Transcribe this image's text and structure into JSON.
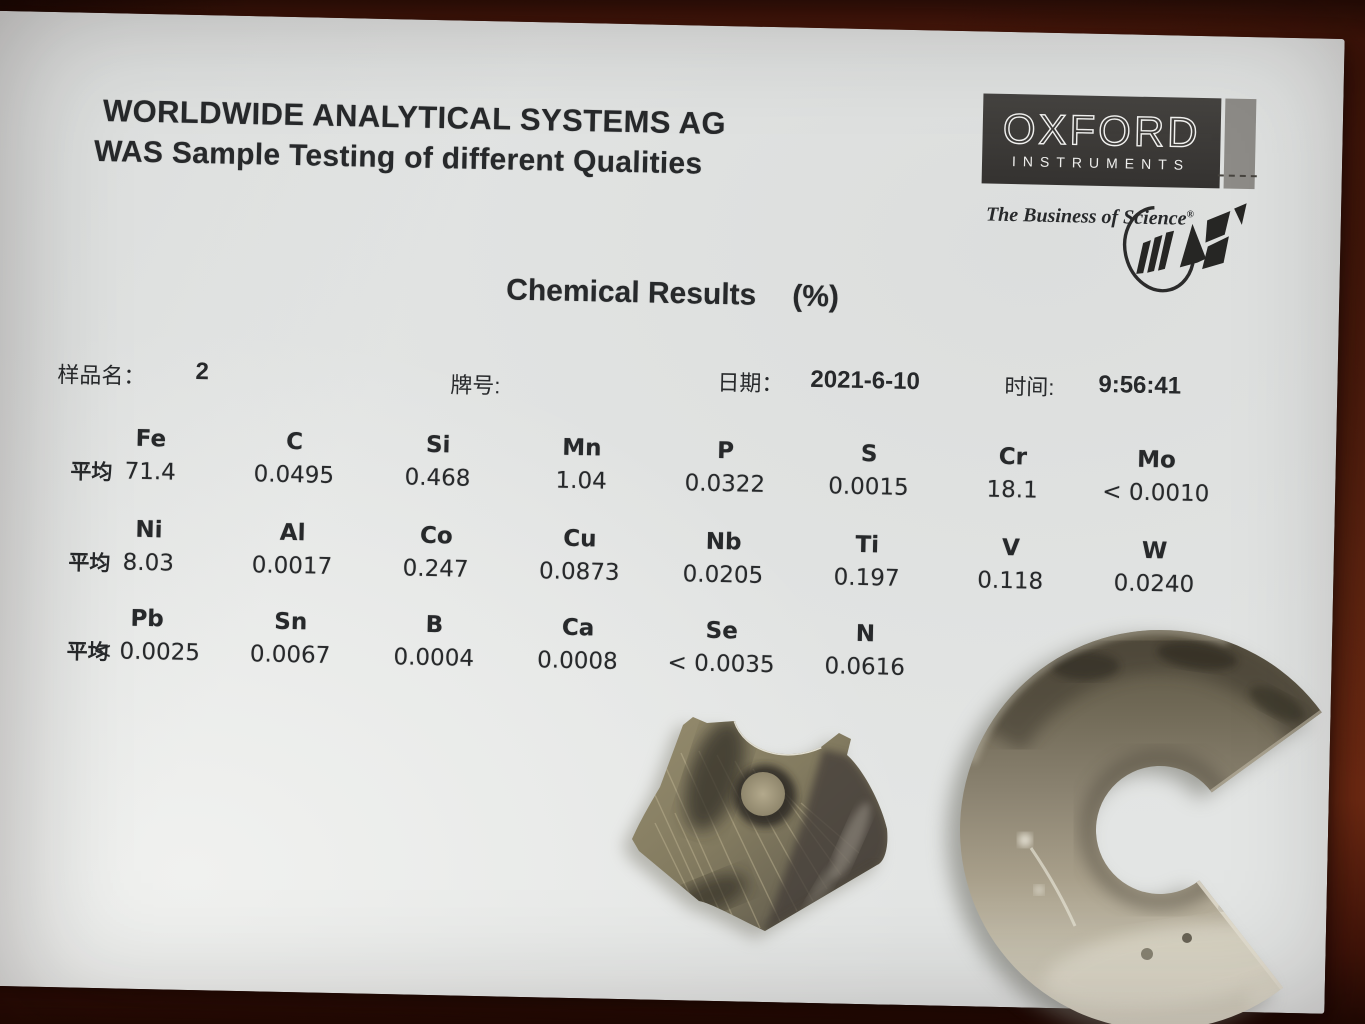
{
  "palette": {
    "paper": "#e3e5e4",
    "wood_mid": "#7b3116",
    "wood_dark": "#2c0f07",
    "ink": "#27292b",
    "logo_box": "#3b3a38",
    "logo_bar": "#8d8b87",
    "metal_olive": "#8a8266",
    "metal_silver": "#d6d2c2"
  },
  "report": {
    "company_line1": "WORLDWIDE ANALYTICAL SYSTEMS AG",
    "company_line2": "WAS Sample Testing of different Qualities",
    "logo": {
      "name": "OXFORD",
      "sub": "INSTRUMENTS",
      "tagline": "The Business of Science",
      "tagline_reg": "®",
      "mark": "WAS"
    },
    "title": "Chemical Results",
    "title_unit": "(%)",
    "fields": {
      "sample_name_label": "样品名：",
      "sample_name_value": "2",
      "grade_label": "牌号:",
      "grade_value": "",
      "date_label": "日期：",
      "date_value": "2021-6-10",
      "time_label": "时间:",
      "time_value": "9:56:41"
    },
    "avg_label": "平均",
    "element_rows": [
      {
        "elements": [
          "Fe",
          "C",
          "Si",
          "Mn",
          "P",
          "S",
          "Cr",
          "Mo"
        ],
        "values": [
          "71.4",
          "0.0495",
          "0.468",
          "1.04",
          "0.0322",
          "0.0015",
          "18.1",
          "< 0.0010"
        ]
      },
      {
        "elements": [
          "Ni",
          "Al",
          "Co",
          "Cu",
          "Nb",
          "Ti",
          "V",
          "W"
        ],
        "values": [
          "8.03",
          "0.0017",
          "0.247",
          "0.0873",
          "0.0205",
          "0.197",
          "0.118",
          "0.0240"
        ]
      },
      {
        "elements": [
          "Pb",
          "Sn",
          "B",
          "Ca",
          "Se",
          "N"
        ],
        "values": [
          "< 0.0025",
          "0.0067",
          "0.0004",
          "0.0008",
          "< 0.0035",
          "0.0616"
        ]
      }
    ]
  }
}
